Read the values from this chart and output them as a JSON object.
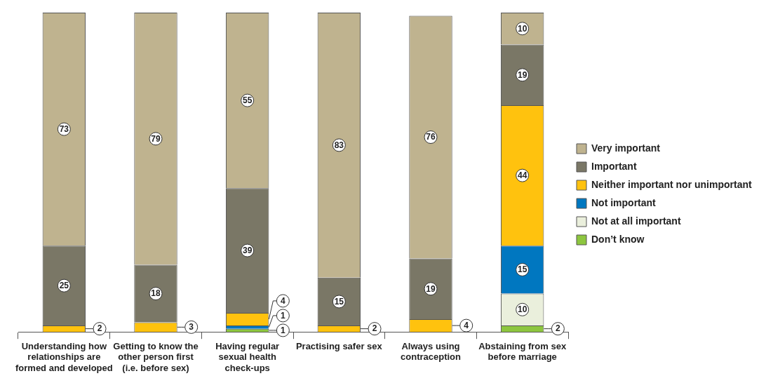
{
  "chart_data": {
    "type": "bar",
    "stacked": true,
    "data_labels": true,
    "legend": "right",
    "grid": false,
    "categories": [
      "Understanding how relationships are formed and developed",
      "Getting to know the other person first (i.e. before sex)",
      "Having regular sexual health check-ups",
      "Practising safer sex",
      "Always using contraception",
      "Abstaining from sex before marriage"
    ],
    "series": [
      {
        "name": "Don’t know",
        "color": "#8dc63f",
        "values": [
          null,
          null,
          1,
          null,
          null,
          2
        ]
      },
      {
        "name": "Not at all important",
        "color": "#eaefdc",
        "values": [
          null,
          null,
          null,
          null,
          null,
          10
        ]
      },
      {
        "name": "Not important",
        "color": "#0077c0",
        "values": [
          null,
          null,
          1,
          null,
          null,
          15
        ]
      },
      {
        "name": "Neither important nor unimportant",
        "color": "#ffc20e",
        "values": [
          2,
          3,
          4,
          2,
          4,
          44
        ]
      },
      {
        "name": "Important",
        "color": "#7a7766",
        "values": [
          25,
          18,
          39,
          15,
          19,
          19
        ]
      },
      {
        "name": "Very important",
        "color": "#bfb38f",
        "values": [
          73,
          79,
          55,
          83,
          76,
          10
        ]
      }
    ]
  }
}
